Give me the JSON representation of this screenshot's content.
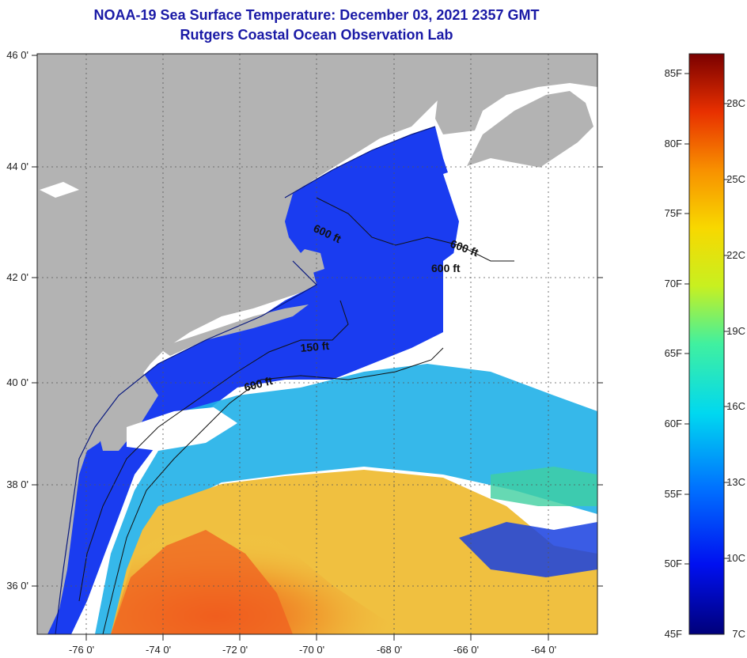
{
  "title": {
    "line1": "NOAA-19 Sea Surface Temperature:  December 03, 2021 2357 GMT",
    "line2": "Rutgers Coastal Ocean Observation Lab"
  },
  "axes": {
    "lat_labels": [
      "46 0'",
      "44 0'",
      "42 0'",
      "40 0'",
      "38 0'",
      "36 0'"
    ],
    "lon_labels": [
      "-76 0'",
      "-74 0'",
      "-72 0'",
      "-70 0'",
      "-68 0'",
      "-66 0'",
      "-64 0'"
    ]
  },
  "contour_labels": [
    "600 ft",
    "600 ft",
    "600 ft",
    "150 ft",
    "600 ft"
  ],
  "colorbar": {
    "fahrenheit": [
      "85F",
      "80F",
      "75F",
      "70F",
      "65F",
      "60F",
      "55F",
      "50F",
      "45F"
    ],
    "celsius": [
      "28C",
      "25C",
      "22C",
      "19C",
      "16C",
      "13C",
      "10C",
      "7C"
    ]
  },
  "colors": {
    "title": "#1a1aa6",
    "land": "#b3b3b3",
    "cloud": "#ffffff",
    "cold": "#1030e8",
    "warm": "#f08020"
  }
}
